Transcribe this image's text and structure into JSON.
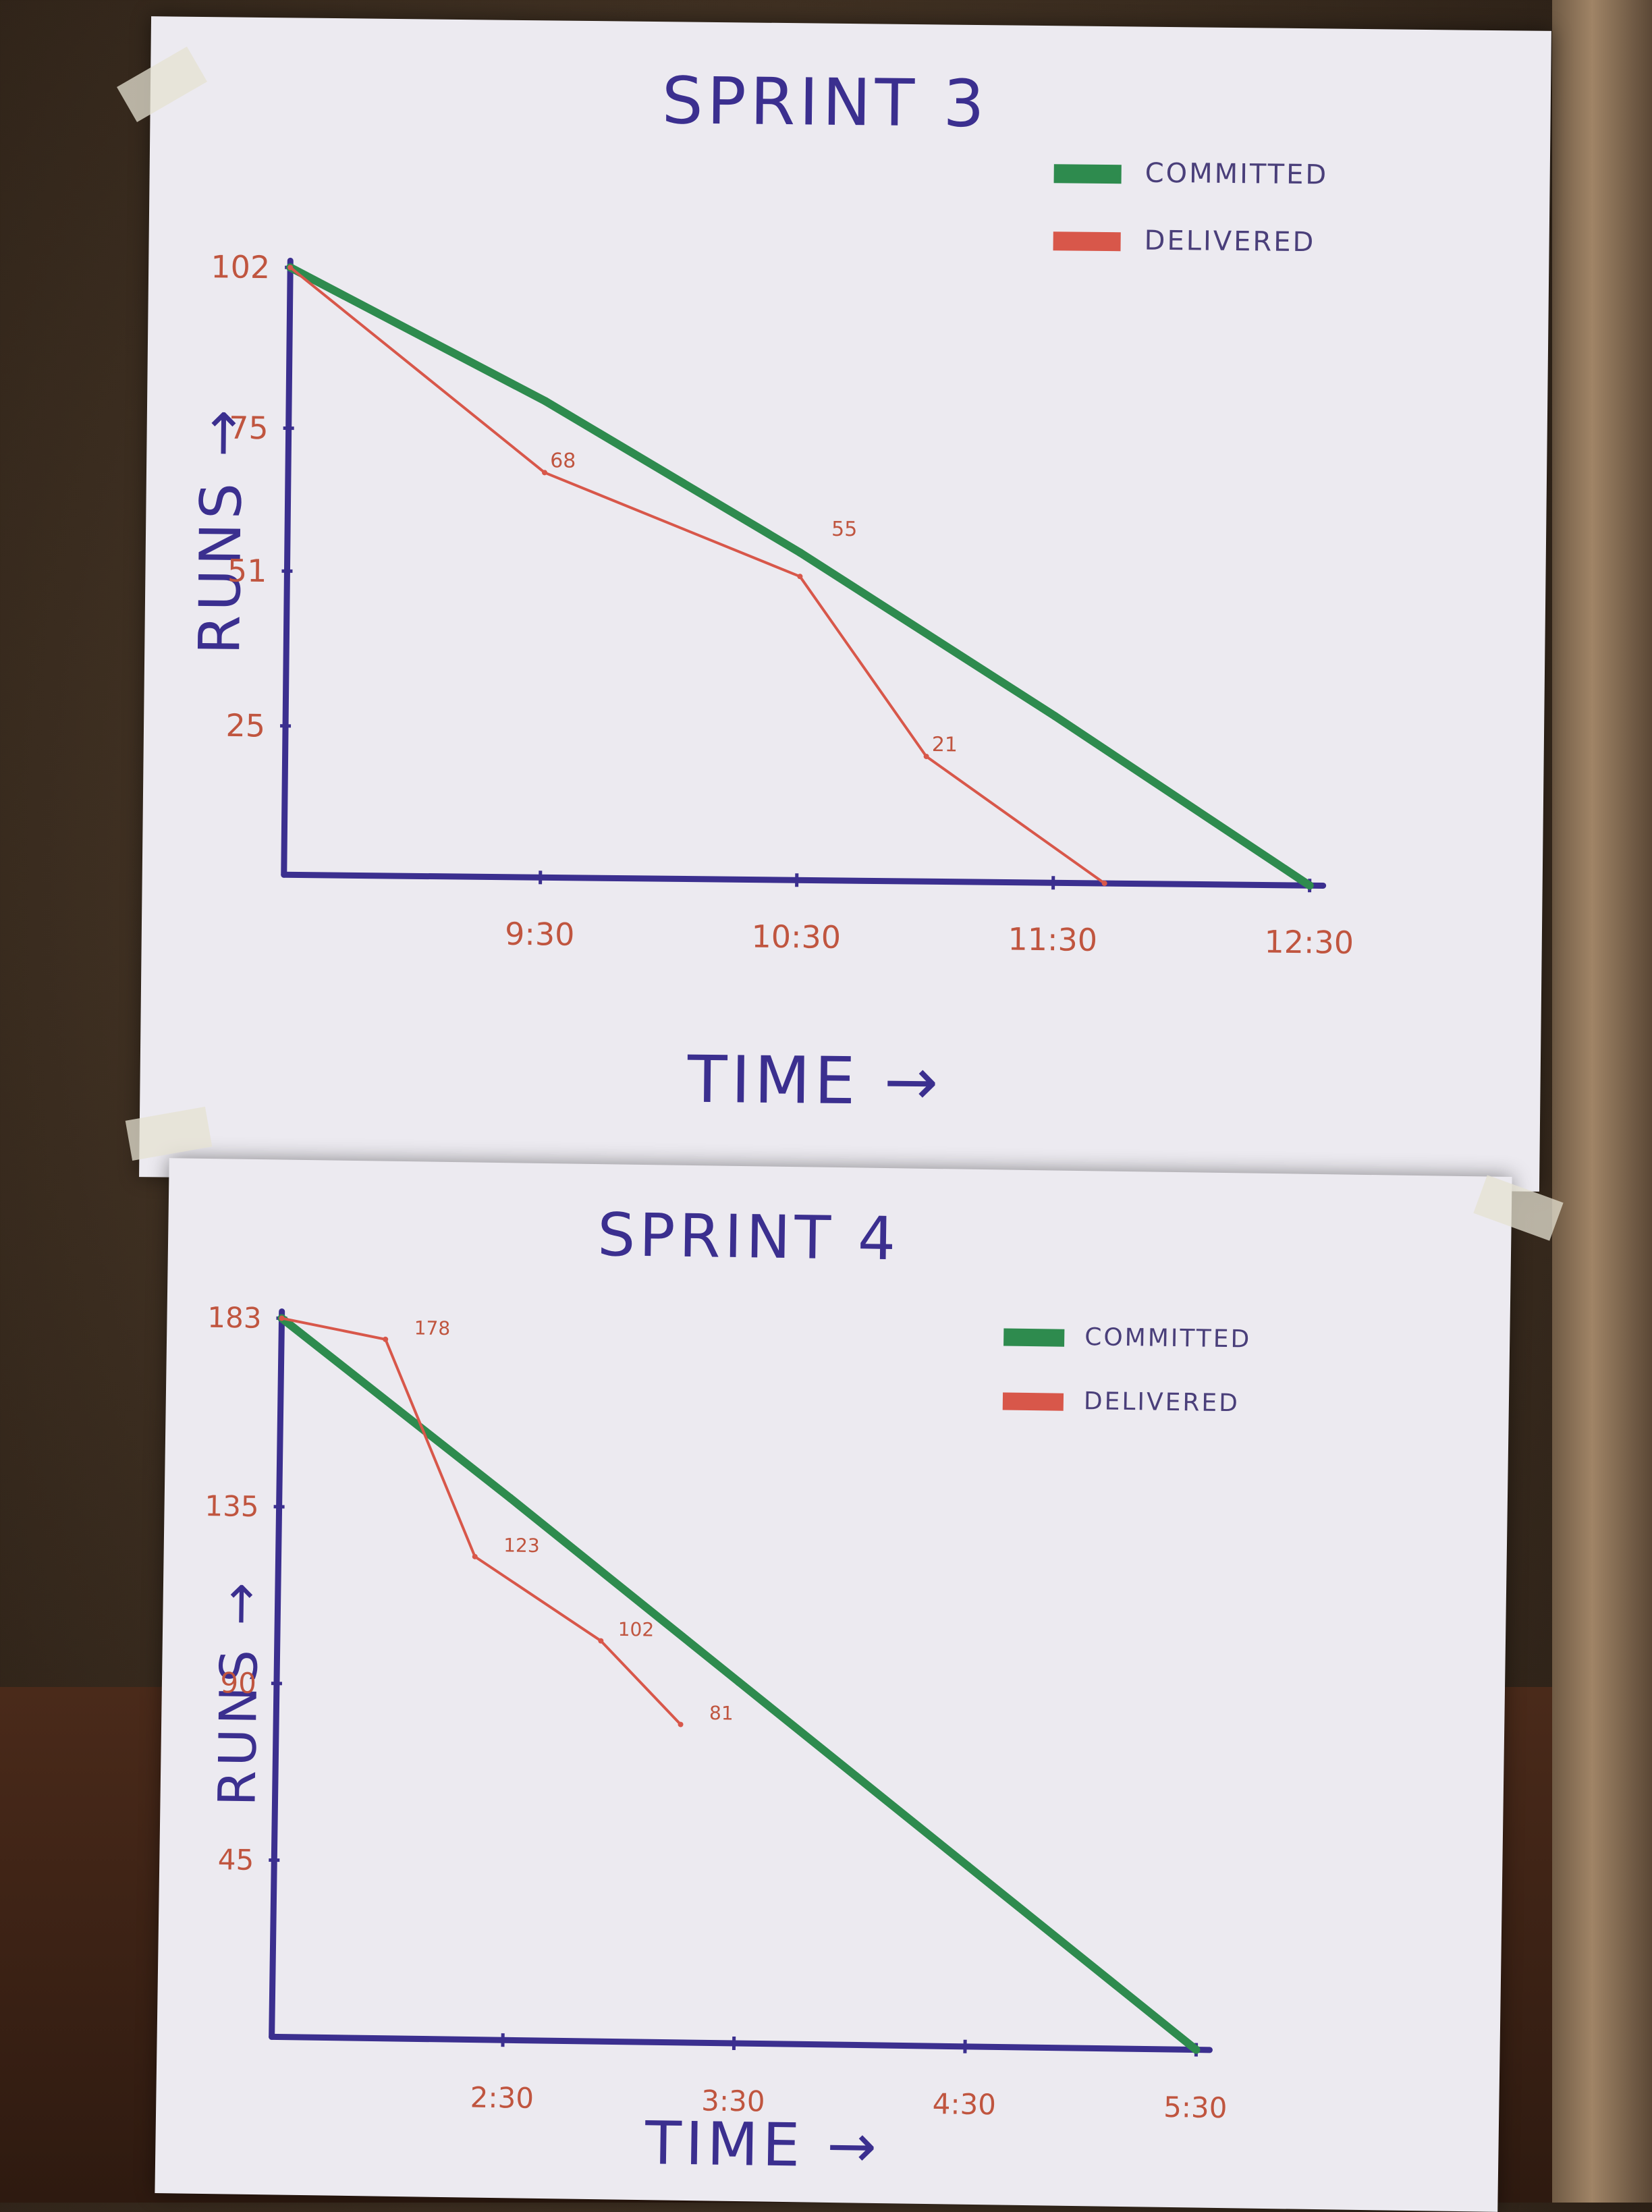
{
  "colors": {
    "committed": "#2e8b4e",
    "delivered": "#d8574a",
    "axis": "#3b2f8f",
    "tick_label": "#c0553f"
  },
  "chart_data": [
    {
      "type": "line",
      "title": "SPRINT 3",
      "xlabel": "TIME →",
      "ylabel": "RUNS →",
      "y_ticks": [
        "102",
        "75",
        "51",
        "25"
      ],
      "y_tick_values": [
        102,
        75,
        51,
        25
      ],
      "x_ticks": [
        "9:30",
        "10:30",
        "11:30",
        "12:30"
      ],
      "x_tick_values": [
        1,
        2,
        3,
        4
      ],
      "xlim": [
        0,
        4
      ],
      "ylim": [
        0,
        102
      ],
      "legend": [
        "COMMITTED",
        "DELIVERED"
      ],
      "legend_position": "top-right",
      "series": [
        {
          "name": "COMMITTED",
          "x": [
            0,
            1,
            2,
            3,
            4
          ],
          "y": [
            102,
            80,
            55,
            28,
            0
          ]
        },
        {
          "name": "DELIVERED",
          "x": [
            0,
            1,
            2,
            2.5,
            3.2
          ],
          "y": [
            102,
            68,
            51,
            21,
            0
          ]
        }
      ],
      "annotations": [
        {
          "text": "68",
          "x": 1,
          "y": 68
        },
        {
          "text": "55",
          "x": 2.1,
          "y": 57
        },
        {
          "text": "21",
          "x": 2.5,
          "y": 21
        }
      ]
    },
    {
      "type": "line",
      "title": "SPRINT 4",
      "xlabel": "TIME →",
      "ylabel": "RUNS →",
      "y_ticks": [
        "183",
        "135",
        "90",
        "45"
      ],
      "y_tick_values": [
        183,
        135,
        90,
        45
      ],
      "x_ticks": [
        "2:30",
        "3:30",
        "4:30",
        "5:30"
      ],
      "x_tick_values": [
        1,
        2,
        3,
        4
      ],
      "xlim": [
        0,
        4
      ],
      "ylim": [
        0,
        183
      ],
      "legend": [
        "COMMITTED",
        "DELIVERED"
      ],
      "legend_position": "top-right",
      "series": [
        {
          "name": "COMMITTED",
          "x": [
            0,
            1,
            2,
            3,
            4
          ],
          "y": [
            183,
            138,
            92,
            46,
            0
          ]
        },
        {
          "name": "DELIVERED",
          "x": [
            0,
            0.45,
            0.85,
            1.4,
            1.75
          ],
          "y": [
            183,
            178,
            123,
            102,
            81
          ]
        }
      ],
      "annotations": [
        {
          "text": "178",
          "x": 0.55,
          "y": 178
        },
        {
          "text": "123",
          "x": 0.95,
          "y": 123
        },
        {
          "text": "102",
          "x": 1.45,
          "y": 102
        },
        {
          "text": "81",
          "x": 1.85,
          "y": 81
        }
      ]
    }
  ]
}
